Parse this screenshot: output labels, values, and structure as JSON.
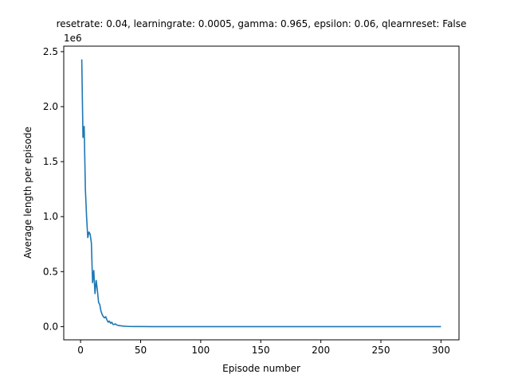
{
  "chart_data": {
    "type": "line",
    "title": "resetrate: 0.04, learningrate: 0.0005, gamma: 0.965, epsilon: 0.06, qlearnreset: False",
    "xlabel": "Episode number",
    "ylabel": "Average length per episode",
    "y_scale_label": "1e6",
    "x_ticks": [
      0,
      50,
      100,
      150,
      200,
      250,
      300
    ],
    "x_tick_labels": [
      "0",
      "50",
      "100",
      "150",
      "200",
      "250",
      "300"
    ],
    "y_ticks": [
      0,
      0.5,
      1.0,
      1.5,
      2.0,
      2.5
    ],
    "y_tick_labels": [
      "0.0",
      "0.5",
      "1.0",
      "1.5",
      "2.0",
      "2.5"
    ],
    "xlim": [
      -14,
      315
    ],
    "ylim": [
      -0.12,
      2.55
    ],
    "grid": false,
    "color": "#1f77b4",
    "series": [
      {
        "x": [
          1,
          2,
          3,
          4,
          5,
          6,
          7,
          8,
          9,
          10,
          11,
          12,
          13,
          14,
          15,
          16,
          17,
          18,
          19,
          20,
          21,
          22,
          23,
          24,
          25,
          26,
          27,
          28,
          29,
          30,
          31,
          32,
          33,
          34,
          35,
          36,
          38,
          40,
          45,
          50,
          60,
          80,
          100,
          150,
          200,
          250,
          300
        ],
        "y": [
          2.43,
          1.72,
          1.82,
          1.25,
          1.0,
          0.81,
          0.86,
          0.84,
          0.76,
          0.4,
          0.51,
          0.3,
          0.42,
          0.33,
          0.22,
          0.2,
          0.14,
          0.11,
          0.09,
          0.08,
          0.09,
          0.06,
          0.04,
          0.05,
          0.03,
          0.04,
          0.02,
          0.02,
          0.025,
          0.015,
          0.012,
          0.01,
          0.008,
          0.007,
          0.005,
          0.004,
          0.003,
          0.002,
          0.001,
          0.001,
          0.0,
          0.0,
          0.0,
          0.0,
          0.0,
          0.0,
          0.0
        ]
      }
    ]
  }
}
